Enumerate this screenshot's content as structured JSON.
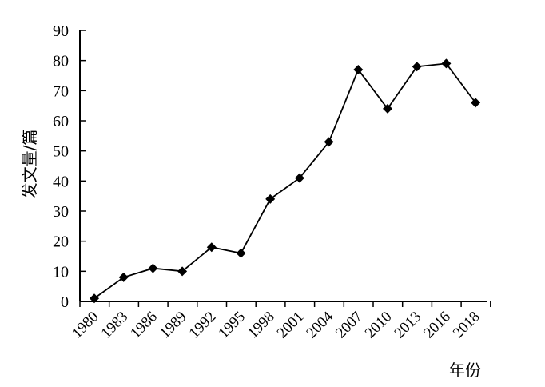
{
  "chart_data": {
    "type": "line",
    "title": "",
    "xlabel": "年份",
    "ylabel": "发文量/篇",
    "ylim": [
      0,
      90
    ],
    "yticks": [
      "0",
      "10",
      "20",
      "30",
      "40",
      "50",
      "60",
      "70",
      "80",
      "90"
    ],
    "xticks": [
      "1980",
      "1983",
      "1986",
      "1989",
      "1992",
      "1995",
      "1998",
      "2001",
      "2004",
      "2007",
      "2010",
      "2013",
      "2016",
      "2018"
    ],
    "marker": "diamond",
    "grid": false,
    "legend": "none",
    "series": [
      {
        "x": [
          "1980",
          "1983",
          "1986",
          "1989",
          "1992",
          "1995",
          "1998",
          "2001",
          "2004",
          "2007",
          "2010",
          "2013",
          "2016",
          "2018"
        ],
        "values": [
          1,
          8,
          11,
          10,
          18,
          16,
          34,
          41,
          53,
          77,
          64,
          78,
          79,
          66
        ]
      }
    ],
    "colors": {
      "line": "#000000",
      "marker": "#000000",
      "axis": "#000000"
    }
  }
}
